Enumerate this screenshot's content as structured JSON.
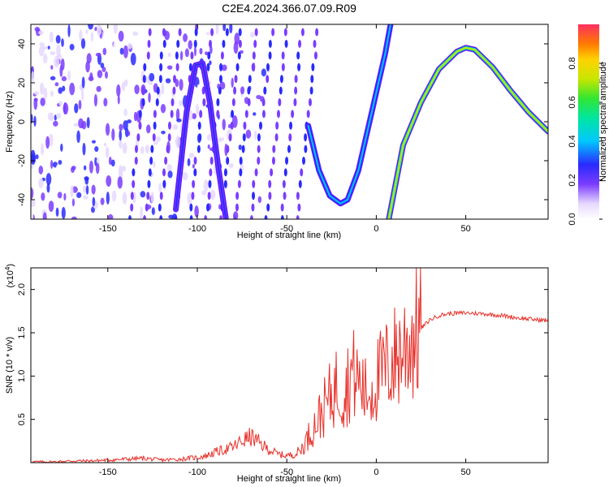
{
  "title": "C2E4.2024.366.07.09.R09",
  "chart_data": [
    {
      "type": "heatmap",
      "xlabel": "Height of straight line (km)",
      "ylabel": "Frequency (Hz)",
      "xlim": [
        -193,
        96
      ],
      "ylim": [
        -50,
        50
      ],
      "xticks": [
        -150,
        -100,
        -50,
        0,
        50
      ],
      "yticks": [
        -40,
        -20,
        0,
        20,
        40
      ],
      "colorbar": {
        "label": "Normalized spectral amplitude",
        "range": [
          0,
          1
        ],
        "ticks": [
          0.0,
          0.2,
          0.4,
          0.6,
          0.8
        ]
      },
      "ridges": [
        {
          "x": [
            -112,
            -106,
            -101,
            -97,
            -93,
            -88,
            -84
          ],
          "y": [
            -45,
            5,
            29,
            30,
            10,
            -25,
            -50
          ],
          "amplitude": 0.35
        },
        {
          "x": [
            -38,
            -32,
            -26,
            -20,
            -16,
            -10,
            -5,
            0,
            5,
            8
          ],
          "y": [
            -2,
            -25,
            -38,
            -42,
            -40,
            -25,
            -5,
            15,
            35,
            50
          ],
          "amplitude": 0.45
        },
        {
          "x": [
            7,
            15,
            25,
            35,
            45,
            50,
            55,
            65,
            75,
            85,
            96
          ],
          "y": [
            -50,
            -12,
            10,
            27,
            36,
            38,
            37,
            28,
            16,
            5,
            -5
          ],
          "amplitude": 0.8
        }
      ]
    },
    {
      "type": "line",
      "xlabel": "Height of straight line (km)",
      "ylabel": "SNR (10 * v/v)",
      "yscale_label": "(x10",
      "yscale_exp": "4",
      "yscale_close": ")",
      "xlim": [
        -193,
        96
      ],
      "ylim": [
        0,
        2.25
      ],
      "xticks": [
        -150,
        -100,
        -50,
        0,
        50
      ],
      "yticks": [
        0.5,
        1.0,
        1.5,
        2.0
      ],
      "ytick_labels": [
        "0.5",
        "1.0",
        "1.5",
        "2.0"
      ],
      "series": [
        {
          "color": "#e8302a",
          "x": [
            -193,
            -180,
            -170,
            -160,
            -150,
            -140,
            -130,
            -120,
            -110,
            -100,
            -95,
            -90,
            -85,
            -80,
            -75,
            -70,
            -65,
            -60,
            -55,
            -50,
            -45,
            -42,
            -38,
            -34,
            -30,
            -26,
            -22,
            -18,
            -14,
            -10,
            -6,
            -2,
            0,
            4,
            8,
            12,
            16,
            20,
            25,
            30,
            35,
            40,
            50,
            60,
            70,
            80,
            90,
            96
          ],
          "y": [
            0.01,
            0.01,
            0.02,
            0.02,
            0.03,
            0.04,
            0.05,
            0.03,
            0.04,
            0.06,
            0.08,
            0.12,
            0.15,
            0.18,
            0.25,
            0.3,
            0.22,
            0.15,
            0.1,
            0.08,
            0.1,
            0.15,
            0.3,
            0.45,
            0.6,
            0.75,
            0.9,
            0.8,
            1.05,
            0.95,
            0.8,
            0.85,
            0.95,
            1.05,
            1.15,
            1.25,
            1.35,
            1.45,
            1.55,
            1.65,
            1.7,
            1.72,
            1.73,
            1.72,
            1.7,
            1.67,
            1.65,
            1.64
          ]
        }
      ]
    }
  ]
}
